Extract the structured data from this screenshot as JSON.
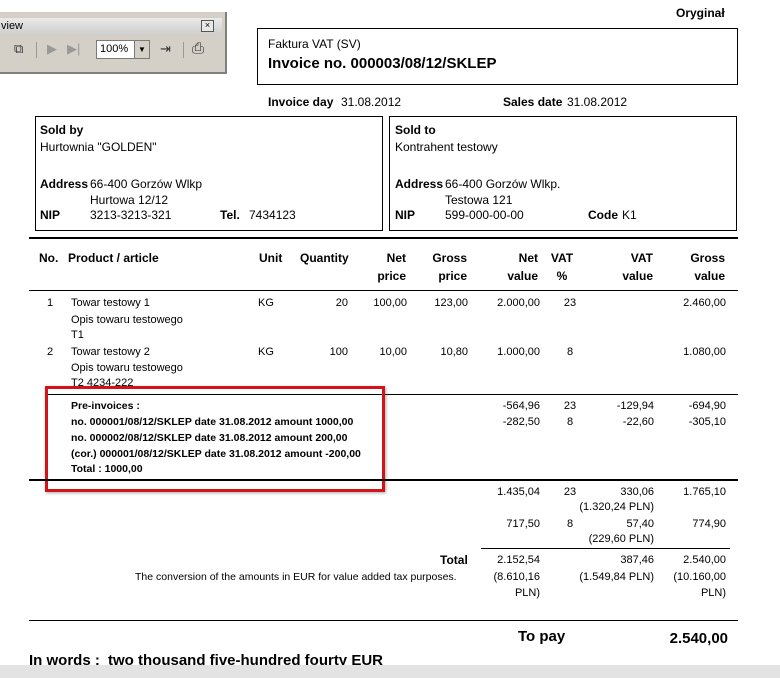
{
  "toolbar": {
    "title": "view",
    "zoom": "100%",
    "icons": [
      "copy-pages-icon",
      "next-page-icon",
      "last-page-icon",
      "zoom-dropdown-icon",
      "exit-icon",
      "print-icon"
    ]
  },
  "doc": {
    "original_label": "Oryginał",
    "invoice_type": "Faktura VAT (SV)",
    "invoice_no": "Invoice no. 000003/08/12/SKLEP",
    "invoice_day_label": "Invoice day",
    "invoice_day": "31.08.2012",
    "sales_date_label": "Sales date",
    "sales_date": "31.08.2012"
  },
  "seller": {
    "header": "Sold by",
    "name": "Hurtownia \"GOLDEN\"",
    "address_label": "Address",
    "address1": "66-400  Gorzów Wlkp",
    "address2": "Hurtowa 12/12",
    "nip_label": "NIP",
    "nip": "3213-3213-321",
    "tel_label": "Tel.",
    "tel": "7434123"
  },
  "buyer": {
    "header": "Sold to",
    "name": "Kontrahent testowy",
    "address_label": "Address",
    "address1": "66-400  Gorzów Wlkp.",
    "address2": "Testowa 121",
    "nip_label": "NIP",
    "nip": "599-000-00-00",
    "code_label": "Code",
    "code": "K1"
  },
  "table": {
    "headers": {
      "no": "No.",
      "product": "Product / article",
      "unit": "Unit",
      "quantity": "Quantity",
      "net_price_1": "Net",
      "net_price_2": "price",
      "gross_price_1": "Gross",
      "gross_price_2": "price",
      "net_value_1": "Net",
      "net_value_2": "value",
      "vat_1": "VAT",
      "vat_2": "%",
      "vat_value_1": "VAT",
      "vat_value_2": "value",
      "gross_value_1": "Gross",
      "gross_value_2": "value"
    },
    "rows": [
      {
        "no": "1",
        "product": "Towar testowy 1",
        "desc1": "Opis towaru testowego",
        "desc2": "T1",
        "unit": "KG",
        "qty": "20",
        "net_price": "100,00",
        "gross_price": "123,00",
        "net_value": "2.000,00",
        "vat": "23",
        "gross_value": "2.460,00"
      },
      {
        "no": "2",
        "product": "Towar testowy 2",
        "desc1": "Opis towaru testowego",
        "desc2": "T2   4234-222",
        "unit": "KG",
        "qty": "100",
        "net_price": "10,00",
        "gross_price": "10,80",
        "net_value": "1.000,00",
        "vat": "8",
        "gross_value": "1.080,00"
      }
    ]
  },
  "preinvoices": {
    "header": "Pre-invoices :",
    "lines": [
      "no. 000001/08/12/SKLEP date 31.08.2012 amount 1000,00",
      "no. 000002/08/12/SKLEP date 31.08.2012 amount 200,00",
      "(cor.) 000001/08/12/SKLEP date 31.08.2012 amount -200,00"
    ],
    "total": "Total : 1000,00",
    "values": [
      {
        "net": "-564,96",
        "vat": "23",
        "vat_value": "-129,94",
        "gross": "-694,90"
      },
      {
        "net": "-282,50",
        "vat": "8",
        "vat_value": "-22,60",
        "gross": "-305,10"
      }
    ]
  },
  "summary": [
    {
      "net": "1.435,04",
      "vat": "23",
      "vat_value": "330,06",
      "vat_pln": "(1.320,24 PLN)",
      "gross": "1.765,10"
    },
    {
      "net": "717,50",
      "vat": "8",
      "vat_value": "57,40",
      "vat_pln": "(229,60 PLN)",
      "gross": "774,90"
    }
  ],
  "total": {
    "label": "Total",
    "net": "2.152,54",
    "net_pln_1": "(8.610,16",
    "net_pln_2": "PLN)",
    "vat_value": "387,46",
    "vat_pln": "(1.549,84 PLN)",
    "gross": "2.540,00",
    "gross_pln_1": "(10.160,00",
    "gross_pln_2": "PLN)",
    "conversion_note": "The conversion of the amounts in EUR for value added tax purposes."
  },
  "to_pay": {
    "label": "To pay",
    "amount": "2.540,00"
  },
  "in_words": {
    "label": "In words :",
    "text": "two thousand five-hundred fourty EUR"
  }
}
